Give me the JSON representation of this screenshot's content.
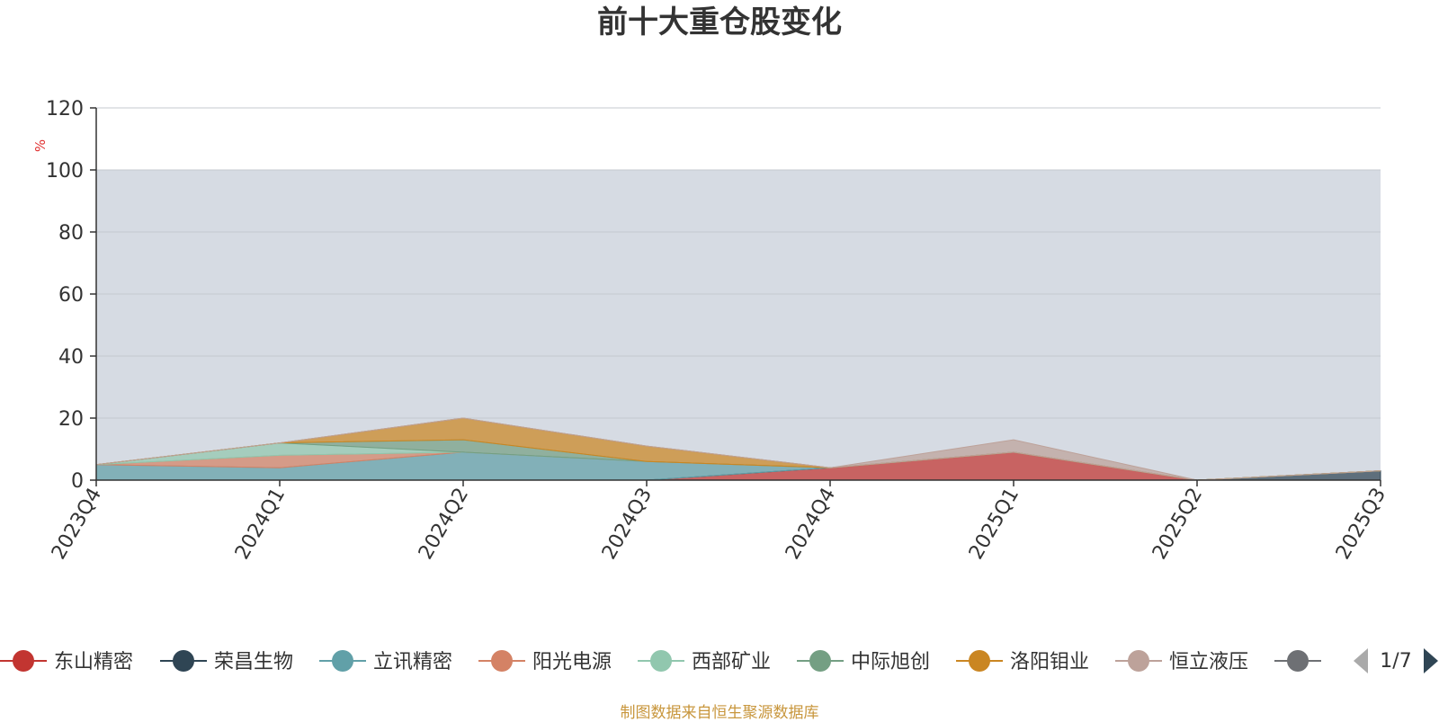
{
  "chart_data": {
    "type": "area",
    "stacked": true,
    "title": "前十大重仓股变化",
    "ylabel": "%",
    "ylim": [
      0,
      120
    ],
    "yticks": [
      0,
      20,
      40,
      60,
      80,
      100,
      120
    ],
    "highlight_band": [
      0,
      100
    ],
    "grid": true,
    "categories": [
      "2023Q4",
      "2024Q1",
      "2024Q2",
      "2024Q3",
      "2024Q4",
      "2025Q1",
      "2025Q2",
      "2025Q3"
    ],
    "series": [
      {
        "name": "东山精密",
        "color": "#c23531",
        "values": [
          0,
          0,
          0,
          0,
          4,
          9,
          0,
          0
        ]
      },
      {
        "name": "荣昌生物",
        "color": "#2f4554",
        "values": [
          0,
          0,
          0,
          0,
          0,
          0,
          0,
          3
        ]
      },
      {
        "name": "立讯精密",
        "color": "#61a0a8",
        "values": [
          5,
          4,
          9,
          6,
          0,
          0,
          0,
          0
        ]
      },
      {
        "name": "阳光电源",
        "color": "#d48265",
        "values": [
          0,
          4,
          0,
          0,
          0,
          0,
          0,
          0
        ]
      },
      {
        "name": "西部矿业",
        "color": "#91c7ae",
        "values": [
          0,
          4,
          0,
          0,
          0,
          0,
          0,
          0
        ]
      },
      {
        "name": "中际旭创",
        "color": "#749f83",
        "values": [
          0,
          0,
          4,
          0,
          0,
          0,
          0,
          0
        ]
      },
      {
        "name": "洛阳钼业",
        "color": "#ca8622",
        "values": [
          0,
          0,
          7,
          5,
          0,
          0,
          0,
          0
        ]
      },
      {
        "name": "恒立液压",
        "color": "#bda29a",
        "values": [
          0,
          0,
          0,
          0,
          0,
          4,
          0,
          0
        ]
      }
    ],
    "legend": {
      "position": "bottom",
      "page_indicator": "1/7",
      "items": [
        {
          "name": "东山精密",
          "color": "#c23531"
        },
        {
          "name": "荣昌生物",
          "color": "#2f4554"
        },
        {
          "name": "立讯精密",
          "color": "#61a0a8"
        },
        {
          "name": "阳光电源",
          "color": "#d48265"
        },
        {
          "name": "西部矿业",
          "color": "#91c7ae"
        },
        {
          "name": "中际旭创",
          "color": "#749f83"
        },
        {
          "name": "洛阳钼业",
          "color": "#ca8622"
        },
        {
          "name": "恒立液压",
          "color": "#bda29a"
        },
        {
          "name": "",
          "color": "#6e7074"
        }
      ]
    }
  },
  "footer": "制图数据来自恒生聚源数据库"
}
